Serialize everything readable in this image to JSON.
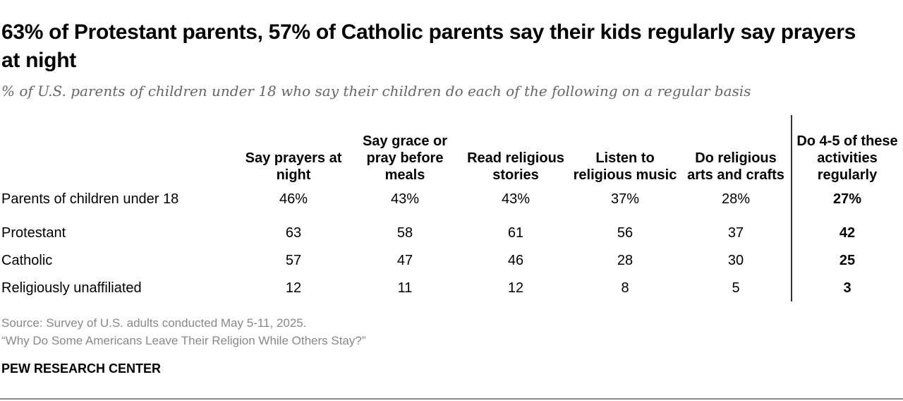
{
  "title": "63% of Protestant parents, 57% of Catholic parents say their kids regularly say prayers at night",
  "subtitle": "% of U.S. parents of children under 18 who say their children do each of the following on a regular basis",
  "chart_data": {
    "type": "table",
    "columns": [
      "Say prayers at night",
      "Say grace or pray before meals",
      "Read religious stories",
      "Listen to religious music",
      "Do religious arts and crafts",
      "Do 4-5 of these activities regularly"
    ],
    "rows": [
      {
        "label": "Parents of children under 18",
        "values": [
          "46%",
          "43%",
          "43%",
          "37%",
          "28%",
          "27%"
        ]
      },
      {
        "label": "Protestant",
        "values": [
          "63",
          "58",
          "61",
          "56",
          "37",
          "42"
        ]
      },
      {
        "label": "Catholic",
        "values": [
          "57",
          "47",
          "46",
          "28",
          "30",
          "25"
        ]
      },
      {
        "label": "Religiously unaffiliated",
        "values": [
          "12",
          "11",
          "12",
          "8",
          "5",
          "3"
        ]
      }
    ]
  },
  "footer": {
    "source": "Source: Survey of U.S. adults conducted May 5-11, 2025.",
    "report": "“Why Do Some Americans Leave Their Religion While Others Stay?”",
    "brand": "PEW RESEARCH CENTER"
  }
}
